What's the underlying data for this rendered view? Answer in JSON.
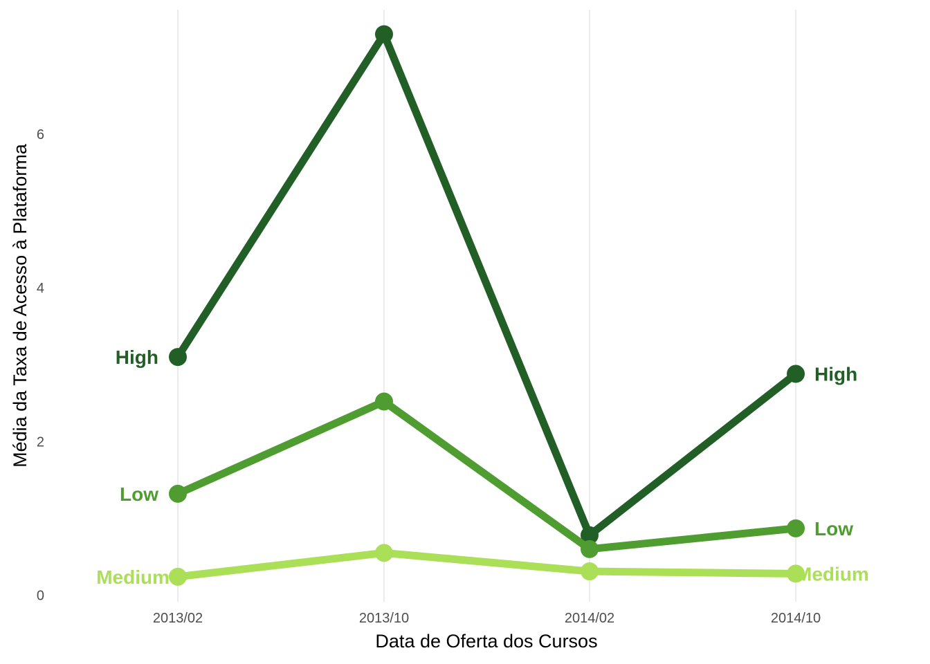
{
  "chart_data": {
    "type": "line",
    "title": "",
    "xlabel": "Data de Oferta dos Cursos",
    "ylabel": "Média da Taxa de Acesso à Plataforma",
    "categories": [
      "2013/02",
      "2013/10",
      "2014/02",
      "2014/10"
    ],
    "ylim": [
      -0.05,
      7.6
    ],
    "yticks": [
      0,
      2,
      4,
      6
    ],
    "grid": "vertical-major",
    "legend": "none (direct labels at both line ends)",
    "series": [
      {
        "name": "High",
        "color": "#215f26",
        "values": [
          3.1,
          7.3,
          0.78,
          2.88
        ]
      },
      {
        "name": "Low",
        "color": "#4f9d30",
        "values": [
          1.32,
          2.52,
          0.6,
          0.87
        ]
      },
      {
        "name": "Medium",
        "color": "#abdf58",
        "values": [
          0.24,
          0.55,
          0.31,
          0.28
        ]
      }
    ]
  }
}
